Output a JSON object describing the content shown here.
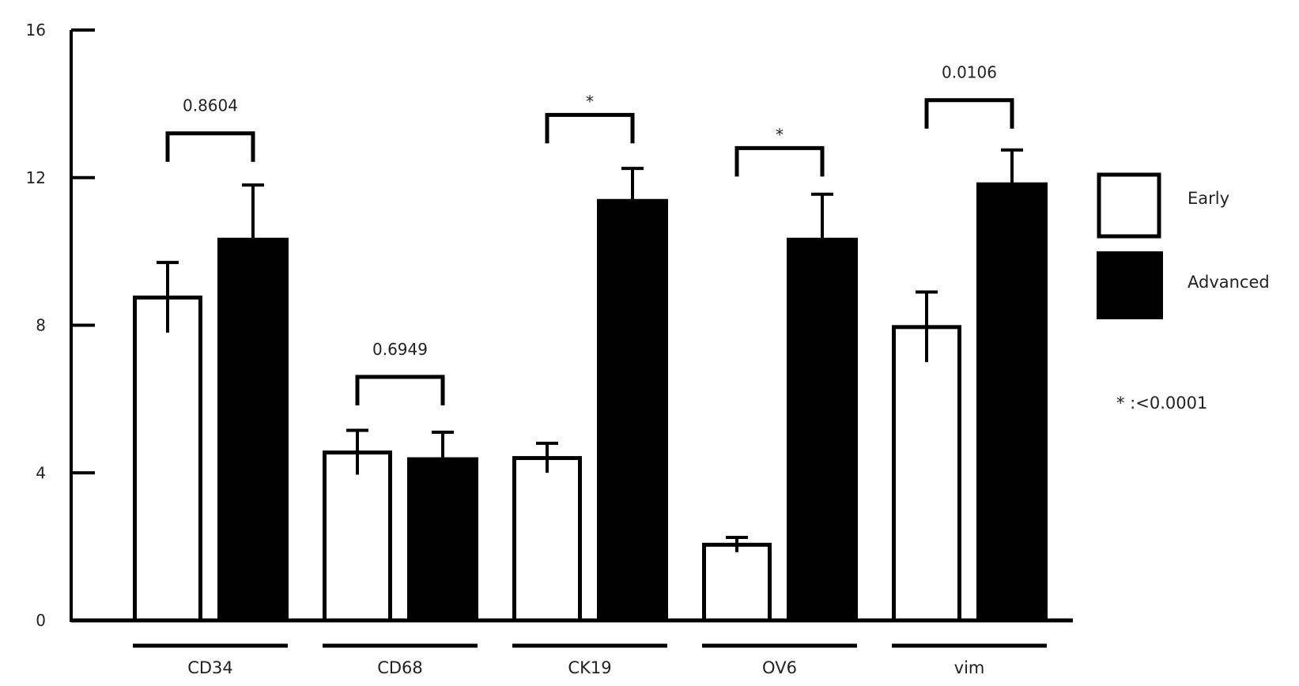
{
  "chart_data": {
    "type": "bar",
    "title": "",
    "xlabel": "",
    "ylabel": "",
    "ylim": [
      0,
      16
    ],
    "yticks": [
      0,
      4,
      8,
      12,
      16
    ],
    "grid": false,
    "legend_position": "right",
    "categories": [
      "CD34",
      "CD68",
      "CK19",
      "OV6",
      "vim"
    ],
    "series": [
      {
        "name": "Early",
        "fill": "#ffffff",
        "stroke": "#000000",
        "values": [
          8.75,
          4.55,
          4.4,
          2.05,
          7.95
        ],
        "errors": [
          0.95,
          0.6,
          0.4,
          0.2,
          0.95
        ]
      },
      {
        "name": "Advanced",
        "fill": "#000000",
        "stroke": "#000000",
        "values": [
          10.35,
          4.4,
          11.4,
          10.35,
          11.85
        ],
        "errors": [
          1.45,
          0.7,
          0.85,
          1.2,
          0.9
        ]
      }
    ],
    "annotations": [
      {
        "category": "CD34",
        "text": "0.8604",
        "bracket_y": 13.2
      },
      {
        "category": "CD68",
        "text": "0.6949",
        "bracket_y": 6.6
      },
      {
        "category": "CK19",
        "text": "*",
        "bracket_y": 13.7
      },
      {
        "category": "OV6",
        "text": "*",
        "bracket_y": 12.8
      },
      {
        "category": "vim",
        "text": "0.0106",
        "bracket_y": 14.1
      }
    ],
    "footnote": "* :<0.0001"
  }
}
